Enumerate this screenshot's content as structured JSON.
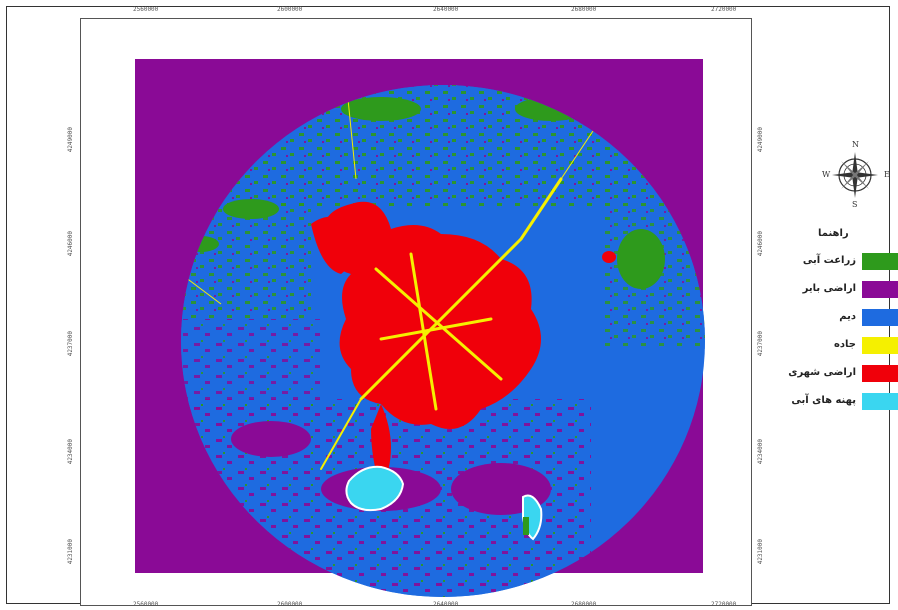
{
  "map": {
    "top_ticks": [
      "2560000",
      "2600000",
      "2640000",
      "2680000",
      "2720000"
    ],
    "bottom_ticks": [
      "2560000",
      "2600000",
      "2640000",
      "2680000",
      "2720000"
    ],
    "left_ticks": [
      "4249000",
      "4246000",
      "4237000",
      "4234000",
      "4231000"
    ],
    "right_ticks": [
      "4249000",
      "4246000",
      "4237000",
      "4234000",
      "4231000"
    ],
    "colors": {
      "background_barren": "#8a0a96",
      "dryland": "#1e6be0",
      "urban": "#f0000a",
      "roads": "#f5f000",
      "irrigated": "#2e9a1c",
      "water": "#3ad6f0"
    }
  },
  "compass": {
    "icon": "compass-rose-icon",
    "north": "N",
    "south": "S",
    "west": "W",
    "east": "E"
  },
  "legend": {
    "title": "راهنما",
    "items": [
      {
        "label": "زراعت آبی",
        "color": "#2e9a1c"
      },
      {
        "label": "اراضی بایر",
        "color": "#8a0a96"
      },
      {
        "label": "دیم",
        "color": "#1e6be0"
      },
      {
        "label": "جاده",
        "color": "#f5f000"
      },
      {
        "label": "اراضی شهری",
        "color": "#f0000a"
      },
      {
        "label": "پهنه های آبی",
        "color": "#3ad6f0"
      }
    ]
  }
}
